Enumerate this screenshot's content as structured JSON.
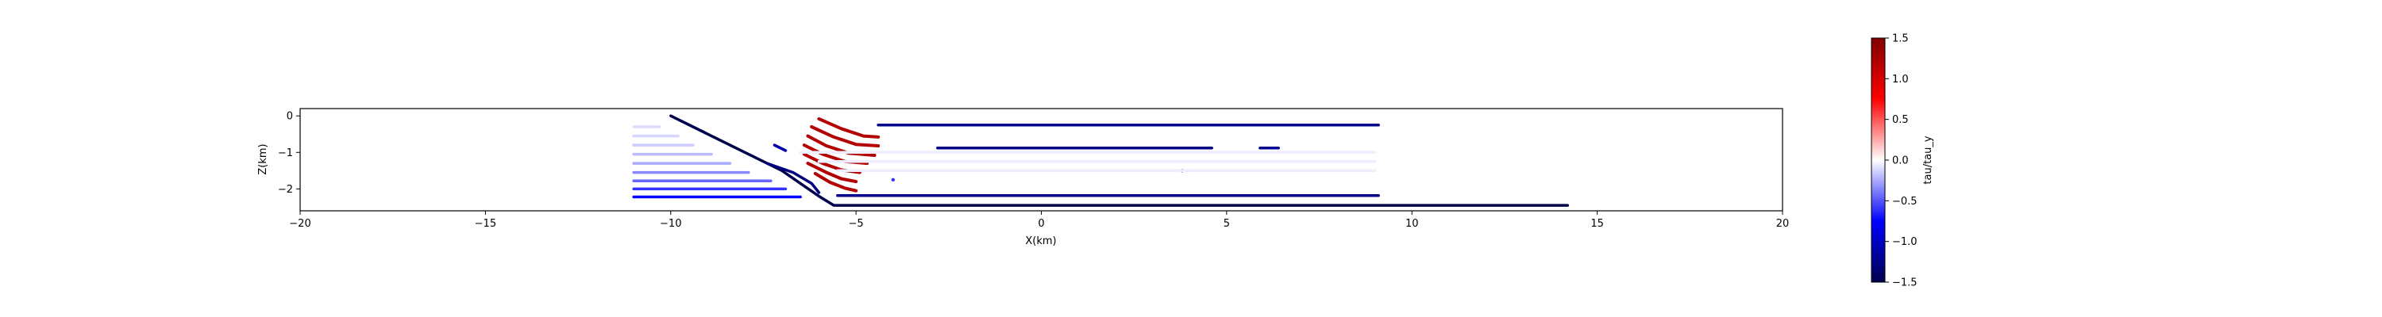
{
  "chart_data": {
    "type": "scatter",
    "xlabel": "X(km)",
    "ylabel": "Z(km)",
    "xlim": [
      -20,
      20
    ],
    "ylim": [
      -2.6,
      0.2
    ],
    "x_ticks": [
      -20,
      -15,
      -10,
      -5,
      0,
      5,
      10,
      15,
      20
    ],
    "y_ticks": [
      0,
      -1,
      -2
    ],
    "grid": false,
    "colorbar": {
      "label": "tau/tau_y",
      "range": [
        -1.5,
        1.5
      ],
      "ticks": [
        1.5,
        1.0,
        0.5,
        0.0,
        -0.5,
        -1.0,
        -1.5
      ],
      "colormap": "seismic",
      "colors": [
        "#00004c",
        "#0000ff",
        "#ffffff",
        "#ff0000",
        "#800000"
      ]
    },
    "series": [
      {
        "kind": "fault",
        "points": [
          [
            -10.0,
            0.0
          ],
          [
            -7.0,
            -1.5
          ],
          [
            -6.0,
            -2.2
          ],
          [
            -5.6,
            -2.45
          ],
          [
            14.2,
            -2.45
          ]
        ],
        "value": -1.5
      },
      {
        "kind": "fault",
        "points": [
          [
            -7.4,
            -1.3
          ],
          [
            -6.7,
            -1.55
          ],
          [
            -6.2,
            -1.85
          ],
          [
            -6.0,
            -2.1
          ]
        ],
        "value": -1.3
      },
      {
        "kind": "fault",
        "points": [
          [
            -7.2,
            -0.8
          ],
          [
            -6.9,
            -0.95
          ]
        ],
        "value": -1.1
      },
      {
        "kind": "fault",
        "points": [
          [
            -4.4,
            -0.25
          ],
          [
            9.1,
            -0.25
          ]
        ],
        "value": -1.25
      },
      {
        "kind": "fault",
        "points": [
          [
            -2.8,
            -0.88
          ],
          [
            4.6,
            -0.88
          ]
        ],
        "value": -1.25
      },
      {
        "kind": "fault",
        "points": [
          [
            5.9,
            -0.88
          ],
          [
            6.4,
            -0.88
          ]
        ],
        "value": -1.2
      },
      {
        "kind": "fault",
        "points": [
          [
            -5.5,
            -2.18
          ],
          [
            9.1,
            -2.18
          ]
        ],
        "value": -1.25
      },
      {
        "kind": "fault",
        "points": [
          [
            -4.0,
            -1.75
          ]
        ],
        "value": -0.6
      },
      {
        "kind": "fault",
        "points": [
          [
            3.8,
            -1.5
          ]
        ],
        "value": -0.6
      },
      {
        "kind": "arc",
        "points": [
          [
            -6.0,
            -0.08
          ],
          [
            -5.4,
            -0.35
          ],
          [
            -4.8,
            -0.55
          ],
          [
            -4.4,
            -0.58
          ]
        ],
        "value": 1.2
      },
      {
        "kind": "arc",
        "points": [
          [
            -6.2,
            -0.3
          ],
          [
            -5.6,
            -0.58
          ],
          [
            -5.0,
            -0.78
          ],
          [
            -4.4,
            -0.82
          ]
        ],
        "value": 1.2
      },
      {
        "kind": "arc",
        "points": [
          [
            -6.3,
            -0.55
          ],
          [
            -5.8,
            -0.82
          ],
          [
            -5.2,
            -1.02
          ],
          [
            -4.5,
            -1.08
          ]
        ],
        "value": 1.2
      },
      {
        "kind": "arc",
        "points": [
          [
            -6.4,
            -0.8
          ],
          [
            -5.9,
            -1.05
          ],
          [
            -5.3,
            -1.25
          ],
          [
            -4.7,
            -1.3
          ]
        ],
        "value": 1.2
      },
      {
        "kind": "arc",
        "points": [
          [
            -6.4,
            -1.05
          ],
          [
            -5.9,
            -1.3
          ],
          [
            -5.4,
            -1.48
          ],
          [
            -4.9,
            -1.55
          ]
        ],
        "value": 1.2
      },
      {
        "kind": "arc",
        "points": [
          [
            -6.3,
            -1.3
          ],
          [
            -5.8,
            -1.55
          ],
          [
            -5.4,
            -1.72
          ],
          [
            -5.0,
            -1.8
          ]
        ],
        "value": 1.2
      },
      {
        "kind": "arc",
        "points": [
          [
            -6.1,
            -1.58
          ],
          [
            -5.7,
            -1.82
          ],
          [
            -5.3,
            -1.98
          ],
          [
            -5.0,
            -2.05
          ]
        ],
        "value": 1.2
      },
      {
        "kind": "ghost",
        "points": [
          [
            -11.0,
            -0.3
          ],
          [
            -10.3,
            -0.3
          ]
        ],
        "value": -0.1
      },
      {
        "kind": "ghost",
        "points": [
          [
            -11.0,
            -0.55
          ],
          [
            -9.8,
            -0.55
          ]
        ],
        "value": -0.12
      },
      {
        "kind": "ghost",
        "points": [
          [
            -11.0,
            -0.8
          ],
          [
            -9.4,
            -0.8
          ]
        ],
        "value": -0.15
      },
      {
        "kind": "ghost",
        "points": [
          [
            -11.0,
            -1.05
          ],
          [
            -8.9,
            -1.05
          ]
        ],
        "value": -0.2
      },
      {
        "kind": "ghost",
        "points": [
          [
            -11.0,
            -1.3
          ],
          [
            -8.4,
            -1.3
          ]
        ],
        "value": -0.25
      },
      {
        "kind": "ghost",
        "points": [
          [
            -11.0,
            -1.55
          ],
          [
            -7.9,
            -1.55
          ]
        ],
        "value": -0.35
      },
      {
        "kind": "ghost",
        "points": [
          [
            -11.0,
            -1.78
          ],
          [
            -7.3,
            -1.78
          ]
        ],
        "value": -0.45
      },
      {
        "kind": "ghost",
        "points": [
          [
            -11.0,
            -2.0
          ],
          [
            -6.9,
            -2.0
          ]
        ],
        "value": -0.6
      },
      {
        "kind": "ghost",
        "points": [
          [
            -11.0,
            -2.22
          ],
          [
            -6.5,
            -2.22
          ]
        ],
        "value": -0.75
      },
      {
        "kind": "ghost",
        "points": [
          [
            -6.5,
            -1.0
          ],
          [
            9.0,
            -1.0
          ]
        ],
        "value": -0.05
      },
      {
        "kind": "ghost",
        "points": [
          [
            -6.0,
            -1.25
          ],
          [
            9.0,
            -1.25
          ]
        ],
        "value": -0.05
      },
      {
        "kind": "ghost",
        "points": [
          [
            -5.5,
            -1.5
          ],
          [
            9.0,
            -1.5
          ]
        ],
        "value": -0.05
      }
    ]
  }
}
